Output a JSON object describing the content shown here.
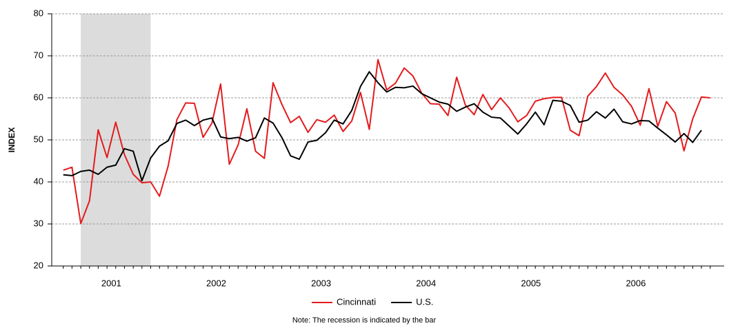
{
  "chart_data": {
    "type": "line",
    "ylabel": "INDEX",
    "note": "Note: The recession is indicated by the bar",
    "x": [
      2001,
      2001.083,
      2001.167,
      2001.25,
      2001.333,
      2001.417,
      2001.5,
      2001.583,
      2001.667,
      2001.75,
      2001.833,
      2001.917,
      2002,
      2002.083,
      2002.167,
      2002.25,
      2002.333,
      2002.417,
      2002.5,
      2002.583,
      2002.667,
      2002.75,
      2002.833,
      2002.917,
      2003,
      2003.083,
      2003.167,
      2003.25,
      2003.333,
      2003.417,
      2003.5,
      2003.583,
      2003.667,
      2003.75,
      2003.833,
      2003.917,
      2004,
      2004.083,
      2004.167,
      2004.25,
      2004.333,
      2004.417,
      2004.5,
      2004.583,
      2004.667,
      2004.75,
      2004.833,
      2004.917,
      2005,
      2005.083,
      2005.167,
      2005.25,
      2005.333,
      2005.417,
      2005.5,
      2005.583,
      2005.667,
      2005.75,
      2005.833,
      2005.917,
      2006,
      2006.083,
      2006.167,
      2006.25,
      2006.333,
      2006.417,
      2006.5,
      2006.583,
      2006.667,
      2006.75,
      2006.833,
      2006.917,
      2007,
      2007.083,
      2007.167
    ],
    "series": [
      {
        "name": "Cincinnati",
        "color": "#e41a1c",
        "values": [
          42.8,
          43.5,
          30.1,
          35.5,
          52.4,
          45.8,
          54.2,
          46.5,
          41.8,
          39.8,
          40.0,
          36.6,
          43.8,
          54.8,
          58.8,
          58.7,
          50.6,
          54.0,
          63.3,
          44.2,
          48.8,
          57.4,
          47.3,
          45.6,
          63.6,
          58.5,
          54.1,
          55.6,
          51.8,
          54.8,
          54.2,
          55.9,
          52.0,
          54.5,
          61.3,
          52.5,
          69.1,
          61.9,
          63.5,
          67.1,
          65.2,
          61.1,
          58.6,
          58.5,
          55.8,
          64.9,
          58.3,
          56.0,
          60.8,
          57.2,
          60.0,
          57.6,
          54.3,
          55.8,
          59.2,
          59.8,
          60.1,
          60.1,
          52.3,
          51.0,
          60.4,
          62.7,
          65.9,
          62.5,
          60.7,
          58.0,
          53.5,
          62.2,
          53.2,
          59.1,
          56.4,
          47.4,
          55.0,
          60.2,
          60.0
        ]
      },
      {
        "name": "U.S.",
        "color": "#000000",
        "values": [
          41.7,
          41.5,
          42.5,
          42.8,
          41.8,
          43.5,
          44.0,
          47.9,
          47.3,
          40.3,
          45.7,
          48.5,
          49.8,
          53.9,
          54.7,
          53.4,
          54.7,
          55.2,
          50.7,
          50.3,
          50.6,
          49.7,
          50.5,
          55.2,
          54.0,
          50.6,
          46.2,
          45.4,
          49.5,
          49.9,
          51.7,
          54.7,
          53.8,
          57.0,
          62.7,
          66.2,
          63.6,
          61.4,
          62.5,
          62.4,
          62.8,
          61.0,
          60.0,
          59.0,
          58.5,
          56.8,
          57.8,
          58.6,
          56.6,
          55.4,
          55.2,
          53.3,
          51.4,
          53.8,
          56.6,
          53.6,
          59.4,
          59.2,
          58.2,
          54.2,
          54.7,
          56.7,
          55.2,
          57.3,
          54.3,
          53.8,
          54.6,
          54.5,
          52.8,
          51.2,
          49.5,
          51.5,
          49.4,
          52.3,
          null
        ]
      }
    ],
    "shaded_band": [
      2001.167,
      2001.833
    ],
    "shade_color": "#dcdcdc",
    "xlim": [
      2000.89,
      2007.3
    ],
    "xticks": [
      {
        "value": 2001.458,
        "label": "2001"
      },
      {
        "value": 2002.458,
        "label": "2002"
      },
      {
        "value": 2003.458,
        "label": "2003"
      },
      {
        "value": 2004.458,
        "label": "2004"
      },
      {
        "value": 2005.458,
        "label": "2005"
      },
      {
        "value": 2006.458,
        "label": "2006"
      }
    ],
    "ylim": [
      20,
      80
    ],
    "yticks": [
      20,
      30,
      40,
      50,
      60,
      70,
      80
    ],
    "grid": true,
    "legend": "bottom"
  }
}
